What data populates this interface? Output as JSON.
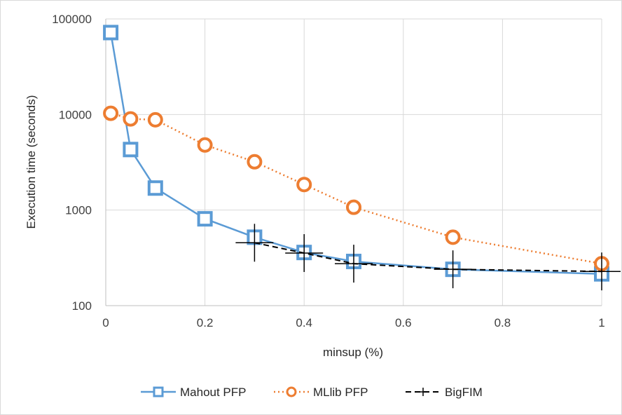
{
  "chart_data": {
    "type": "line",
    "title": "",
    "xlabel": "minsup (%)",
    "ylabel": "Execution time (seconds)",
    "xlim": [
      0,
      1
    ],
    "ylim": [
      100,
      100000
    ],
    "yscale": "log",
    "xticks": [
      "0",
      "0.2",
      "0.4",
      "0.6",
      "0.8",
      "1"
    ],
    "yticks": [
      "100",
      "1000",
      "10000",
      "100000"
    ],
    "grid": true,
    "legend_position": "bottom",
    "series": [
      {
        "name": "Mahout PFP",
        "color": "#5b9bd5",
        "style": "solid",
        "marker": "square",
        "x": [
          0.01,
          0.05,
          0.1,
          0.2,
          0.3,
          0.4,
          0.5,
          0.7,
          1
        ],
        "y": [
          72000,
          4300,
          1700,
          810,
          520,
          360,
          290,
          240,
          215
        ]
      },
      {
        "name": "MLlib PFP",
        "color": "#ed7d31",
        "style": "dotted",
        "marker": "circle",
        "x": [
          0.01,
          0.05,
          0.1,
          0.2,
          0.3,
          0.4,
          0.5,
          0.7,
          1
        ],
        "y": [
          10300,
          9000,
          8800,
          4800,
          3200,
          1850,
          1070,
          520,
          275
        ]
      },
      {
        "name": "BigFIM",
        "color": "#000000",
        "style": "dashed",
        "marker": "plus",
        "x": [
          0.3,
          0.4,
          0.5,
          0.7,
          1
        ],
        "y": [
          455,
          355,
          275,
          240,
          228
        ]
      }
    ]
  }
}
